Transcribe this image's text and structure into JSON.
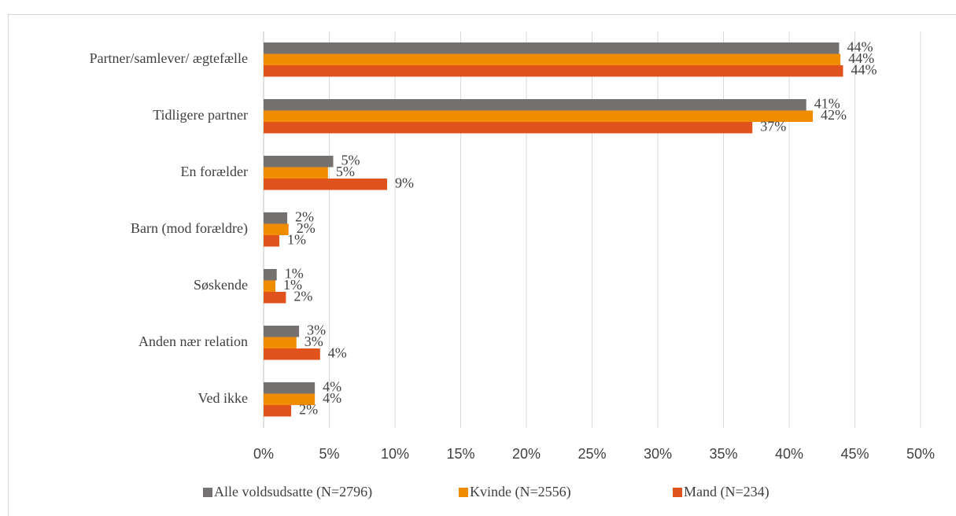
{
  "chart_data": {
    "type": "bar",
    "orientation": "horizontal",
    "categories": [
      "Partner/samlever/ ægtefælle",
      "Tidligere partner",
      "En forælder",
      "Barn (mod forældre)",
      "Søskende",
      "Anden nær relation",
      "Ved ikke"
    ],
    "series": [
      {
        "name": "Alle voldsudsatte (N=2796)",
        "color": "#767171",
        "values": [
          43.8,
          41.3,
          5.3,
          1.8,
          1.0,
          2.7,
          3.9
        ],
        "value_labels": [
          "44%",
          "41%",
          "5%",
          "2%",
          "1%",
          "3%",
          "4%"
        ]
      },
      {
        "name": "Kvinde (N=2556)",
        "color": "#f08c00",
        "values": [
          43.9,
          41.8,
          4.9,
          1.9,
          0.9,
          2.5,
          3.9
        ],
        "value_labels": [
          "44%",
          "42%",
          "5%",
          "2%",
          "1%",
          "3%",
          "4%"
        ]
      },
      {
        "name": "Mand (N=234)",
        "color": "#e0531c",
        "values": [
          44.1,
          37.2,
          9.4,
          1.2,
          1.7,
          4.3,
          2.1
        ],
        "value_labels": [
          "44%",
          "37%",
          "9%",
          "1%",
          "2%",
          "4%",
          "2%"
        ]
      }
    ],
    "xlim": [
      0,
      50
    ],
    "xticks": [
      {
        "value": 0,
        "label": "0%"
      },
      {
        "value": 5,
        "label": "5%"
      },
      {
        "value": 10,
        "label": "10%"
      },
      {
        "value": 15,
        "label": "15%"
      },
      {
        "value": 20,
        "label": "20%"
      },
      {
        "value": 25,
        "label": "25%"
      },
      {
        "value": 30,
        "label": "30%"
      },
      {
        "value": 35,
        "label": "35%"
      },
      {
        "value": 40,
        "label": "40%"
      },
      {
        "value": 45,
        "label": "45%"
      },
      {
        "value": 50,
        "label": "50%"
      }
    ],
    "grid": true,
    "legend": "bottom"
  }
}
